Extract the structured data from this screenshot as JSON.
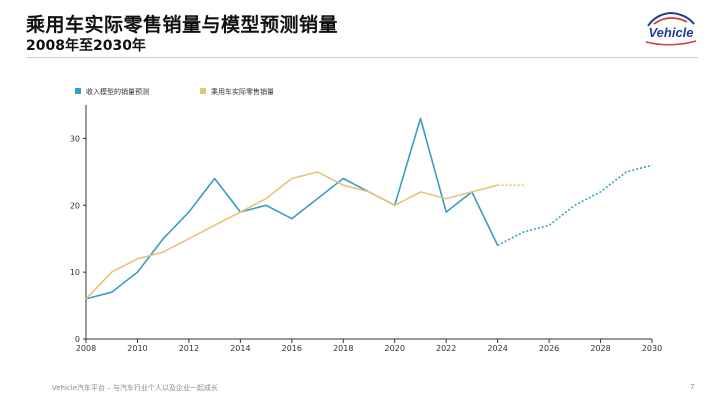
{
  "title": "乘用车实际零售销量与模型预测销量",
  "subtitle": "2008年至2030年",
  "logo_text": "Vehicle",
  "footer": "Vehicle汽车平台 – 与汽车行业个人以及企业一起成长",
  "page_number": "7",
  "colors": {
    "model": "#3a9cc4",
    "retail": "#e8c27a",
    "axis": "#333333"
  },
  "chart_data": {
    "type": "line",
    "x_ticks": [
      "2008",
      "2010",
      "2012",
      "2014",
      "2016",
      "2018",
      "2020",
      "2022",
      "2024",
      "2026",
      "2028",
      "2030"
    ],
    "y_ticks": [
      "0",
      "10",
      "20",
      "30"
    ],
    "xlim": [
      2008,
      2030
    ],
    "ylim": [
      0,
      35
    ],
    "legend_position": "top-left",
    "series": [
      {
        "name": "收入模型的销量预测",
        "color": "#3a9cc4",
        "x": [
          2008,
          2009,
          2010,
          2011,
          2012,
          2013,
          2014,
          2015,
          2016,
          2017,
          2018,
          2019,
          2020,
          2021,
          2022,
          2023,
          2024
        ],
        "values": [
          6,
          7,
          10,
          15,
          19,
          24,
          19,
          20,
          18,
          21,
          24,
          22,
          20,
          33,
          19,
          22,
          14
        ],
        "forecast_x": [
          2024,
          2025,
          2026,
          2027,
          2028,
          2029,
          2030
        ],
        "forecast_values": [
          14,
          16,
          17,
          20,
          22,
          25,
          26
        ]
      },
      {
        "name": "乘用车实际零售销量",
        "color": "#e8c27a",
        "x": [
          2008,
          2009,
          2010,
          2011,
          2012,
          2013,
          2014,
          2015,
          2016,
          2017,
          2018,
          2019,
          2020,
          2021,
          2022,
          2023,
          2024
        ],
        "values": [
          6,
          10,
          12,
          13,
          15,
          17,
          19,
          21,
          24,
          25,
          23,
          22,
          20,
          22,
          21,
          22,
          23
        ],
        "forecast_x": [
          2024,
          2025
        ],
        "forecast_values": [
          23,
          23
        ]
      }
    ]
  }
}
